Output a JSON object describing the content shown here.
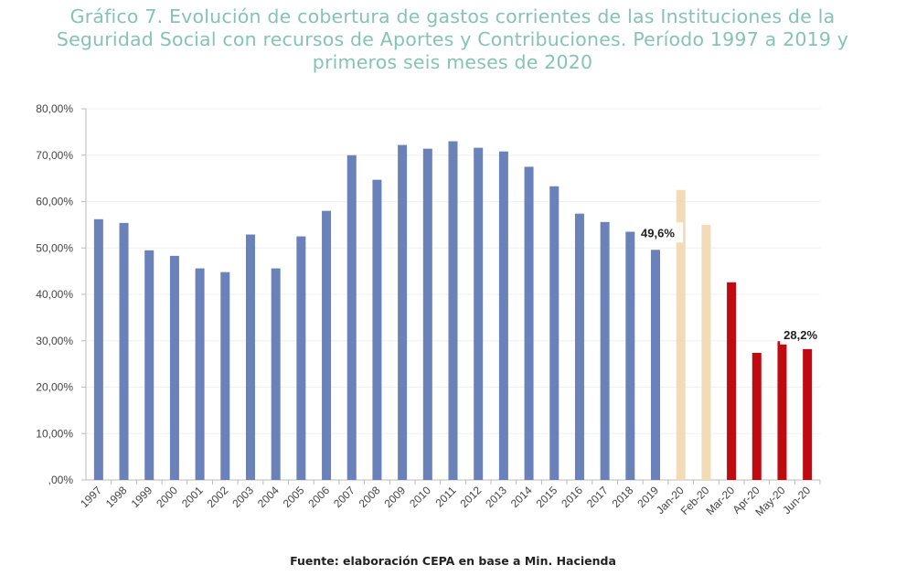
{
  "chart_data": {
    "type": "bar",
    "title": "Gráfico 7. Evolución de cobertura de gastos corrientes de las Instituciones de la Seguridad Social con recursos de Aportes y Contribuciones. Período 1997 a 2019 y primeros seis meses de 2020",
    "title_lines": [
      "Gráfico 7. Evolución de cobertura de gastos corrientes de las Instituciones de la",
      "Seguridad Social con recursos de Aportes y Contribuciones. Período 1997 a 2019 y",
      "primeros seis meses de 2020"
    ],
    "xlabel": "",
    "ylabel": "",
    "ylim": [
      0,
      80
    ],
    "yticks": [
      ",00%",
      "10,00%",
      "20,00%",
      "30,00%",
      "40,00%",
      "50,00%",
      "60,00%",
      "70,00%",
      "80,00%"
    ],
    "grid": true,
    "categories": [
      "1997",
      "1998",
      "1999",
      "2000",
      "2001",
      "2002",
      "2003",
      "2004",
      "2005",
      "2006",
      "2007",
      "2008",
      "2009",
      "2010",
      "2011",
      "2012",
      "2013",
      "2014",
      "2015",
      "2016",
      "2017",
      "2018",
      "2019",
      "Jan-20",
      "Feb-20",
      "Mar-20",
      "Apr-20",
      "May-20",
      "Jun-20"
    ],
    "values": [
      56.2,
      55.4,
      49.5,
      48.3,
      45.6,
      44.8,
      52.9,
      45.6,
      52.5,
      58.0,
      70.0,
      64.7,
      72.2,
      71.4,
      73.0,
      71.6,
      70.8,
      67.5,
      63.3,
      57.4,
      55.6,
      53.5,
      49.6,
      62.5,
      55.0,
      42.6,
      27.4,
      29.9,
      28.2
    ],
    "groups": [
      "annual",
      "annual",
      "annual",
      "annual",
      "annual",
      "annual",
      "annual",
      "annual",
      "annual",
      "annual",
      "annual",
      "annual",
      "annual",
      "annual",
      "annual",
      "annual",
      "annual",
      "annual",
      "annual",
      "annual",
      "annual",
      "annual",
      "annual",
      "pre-pandemic-month",
      "pre-pandemic-month",
      "pandemic-month",
      "pandemic-month",
      "pandemic-month",
      "pandemic-month"
    ],
    "colors": {
      "annual": "#6a82b9",
      "pre-pandemic-month": "#f3dbb8",
      "pandemic-month": "#c00a10"
    },
    "data_labels": [
      {
        "category": "2019",
        "text": "49,6%"
      },
      {
        "category": "Jun-20",
        "text": "28,2%"
      }
    ],
    "source": "Fuente: elaboración CEPA en base a Min. Hacienda"
  }
}
